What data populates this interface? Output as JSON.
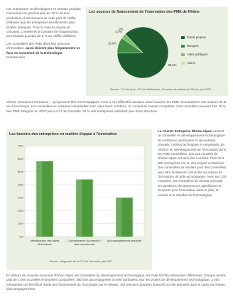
{
  "left_column": {
    "para1": "Les entreprises se développent en nombre produits concernant en général plus de 10 % de leur production. Il est souvent de cette part de chiffre d'affaires que les entreprises bénéficient le plus d'idées pratiques. Pour la mise en œuvre de concepts, conseils et la conduite de l'organisation, les résultats pouvant de 5 % au chiffre d'affaires.",
    "para2_intro": "Les conseillers des PME dans leur structure d'innovation,",
    "para2_bold": "aussi doivent plus fréquemment se fixer en concentré de la technologie.",
    "para2_rest": "Nombreuses."
  },
  "pie_chart": {
    "title": "Les sources de financement de l'innovation des PME de Rhône",
    "source": "Source : CCI de Lyon, CCI de Villefranche, Chambre de métiers du Rhône, juin 2007",
    "chart_data": {
      "type": "pie",
      "slices": [
        {
          "label": "Fonds propres",
          "value": 86.6,
          "display": "86,6%",
          "color": "#1d5b2e"
        },
        {
          "label": "Banques",
          "value": 10.0,
          "display": "10,0%",
          "color": "#3d8e45"
        },
        {
          "label": "Aides publiques",
          "value": 3.4,
          "display": "3,4%",
          "color": "#7cc06a"
        },
        {
          "label": "Autres",
          "value": 0.0,
          "display": "0%",
          "color": "#c4e3a8"
        }
      ]
    }
  },
  "middle_paragraph": "clients, ressources humaines ... qui peuvent être technologiques. Face à ces difficultés sociales aussi souvent, les PME reconnaissent aux acteurs de la vie économique. Les conseillers en relations industrielles sont, dans leurs nombres, un conseil de l'expert comptable. Ces conseillers peuvent être 75 % des PME désignés en 2007 par la CCI de Grenoble. 50 % des entreprises sollicitent plus d'une structure.",
  "bar_chart": {
    "title": "Les besoins des entreprises en matière d'appui à l'innovation",
    "source": "Source : diagnostic de la CCI de Grenoble, juin 2007",
    "chart_data": {
      "type": "bar",
      "categories": [
        "Identification des aides financières",
        "Connaissance du marché / des concurrents",
        "Accompagnement juridique"
      ],
      "values": [
        58,
        44,
        30
      ],
      "ylim": [
        0,
        70
      ],
      "yticks": [
        "0%",
        "10%",
        "20%",
        "30%",
        "40%",
        "50%",
        "60%",
        "70%"
      ],
      "bar_color": "#4f9a3c"
    }
  },
  "right_column": {
    "lead_bold": "Le Cluster Entreprise Rhône-Alpes",
    "text": "contient un conseiller en développement technologique de nombreux partenaires et spécialistes, conseils, centres techniques et universités. En 2006 et en développement de l'innovation dans les PME conseillées. Les 215 conseils de Rhône-Alpes ont ainsi été conduits. Près de 5 000 entreprises ont eu des projets contactées. Des conseillers se rendent pour des conseillers pour être facilement connectés au réseau de l'innovation du pôle accompagné. Avec ses 100 membres, les conseillers du réseau ont traité les questions d'entrepreneurs spécifiques et d'experts pour l'innovation dans le pôle, le conseil et le transfert de technologies."
  },
  "bottom_paragraph": "En dehors de conseils innovants Rhône-Alpes, les conseillers du développement technologique ont traité 50 000 entreprises différentes. Chaque année, plus de 1 000 nouvelles entreprises contactées. 350 000 accompagnées ont été attribuées pour les projets de développement technologique. 2 500 entreprises ont bénéficié d'aide aux financement de l'innovation par le réseau. 750 premiers dossiers financés ont été déposés dans le cadre du réseau d'accompagnement."
}
